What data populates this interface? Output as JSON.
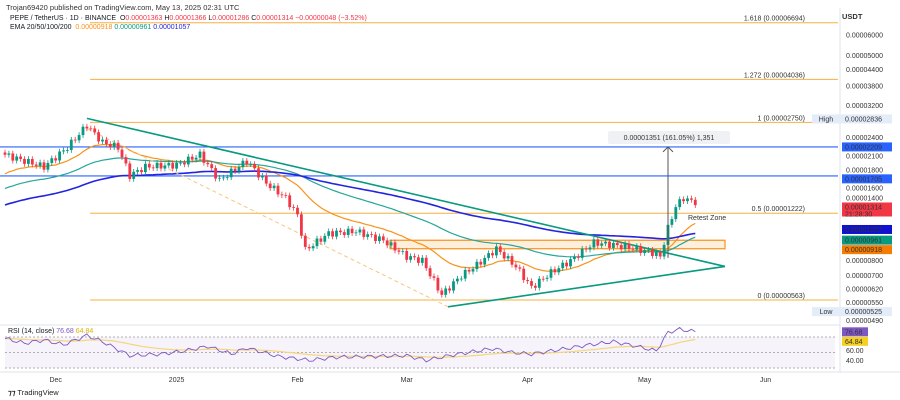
{
  "header": {
    "published": "Trojan69420 published on TradingView.com, May 13, 2025 02:31 UTC",
    "symbol": "PEPE / TetherUS · 1D · BINANCE",
    "o_label": "O",
    "o": "0.00001363",
    "h_label": "H",
    "h": "0.00001366",
    "l_label": "L",
    "l": "0.00001286",
    "c_label": "C",
    "c": "0.00001314",
    "change": "−0.00000048 (−3.52%)",
    "ema_label": "EMA 20/50/100/200",
    "ema20": "0.00000918",
    "ema50": "0.00000961",
    "ema100": "0.00001057"
  },
  "currency": "USDT",
  "colors": {
    "up": "#089981",
    "down": "#f23645",
    "ema20": "#f7931a",
    "ema50": "#26a69a",
    "ema100": "#2323e0",
    "ema200": "#2323e0",
    "fib": "#f5b041",
    "level": "#2962ff",
    "trend": "#089981",
    "rsi": "#7e57c2",
    "rsi_ma": "#f5d67b"
  },
  "chart_data": {
    "type": "candlestick",
    "title": "PEPE / TetherUS · 1D · BINANCE",
    "scale": "log",
    "y_ticks": [
      "0.00006000",
      "0.00005000",
      "0.00004400",
      "0.00003800",
      "0.00003200",
      "0.00002400",
      "0.00002100",
      "0.00001800",
      "0.00001600",
      "0.00001400",
      "0.00000800",
      "0.00000700",
      "0.00000620",
      "0.00000550",
      "0.00000490"
    ],
    "x_ticks": [
      {
        "label": "Dec",
        "day": 13
      },
      {
        "label": "2025",
        "day": 44
      },
      {
        "label": "Feb",
        "day": 75
      },
      {
        "label": "Mar",
        "day": 103
      },
      {
        "label": "Apr",
        "day": 134
      },
      {
        "label": "May",
        "day": 164
      },
      {
        "label": "Jun",
        "day": 195
      }
    ],
    "closes_keypoints": [
      [
        0,
        2.06e-05
      ],
      [
        5,
        1.95e-05
      ],
      [
        10,
        1.85e-05
      ],
      [
        16,
        2.2e-05
      ],
      [
        21,
        2.68e-05
      ],
      [
        25,
        2.3e-05
      ],
      [
        29,
        2.2e-05
      ],
      [
        32,
        1.71e-05
      ],
      [
        36,
        1.85e-05
      ],
      [
        44,
        1.88e-05
      ],
      [
        50,
        2.06e-05
      ],
      [
        55,
        1.64e-05
      ],
      [
        62,
        1.95e-05
      ],
      [
        67,
        1.6e-05
      ],
      [
        72,
        1.4e-05
      ],
      [
        75,
        1.2e-05
      ],
      [
        77,
        8.8e-06
      ],
      [
        83,
        1.02e-05
      ],
      [
        90,
        1.04e-05
      ],
      [
        97,
        9.6e-06
      ],
      [
        103,
        8.3e-06
      ],
      [
        107,
        8e-06
      ],
      [
        112,
        5.9e-06
      ],
      [
        117,
        7e-06
      ],
      [
        121,
        7.7e-06
      ],
      [
        126,
        8.9e-06
      ],
      [
        131,
        7.6e-06
      ],
      [
        135,
        6.3e-06
      ],
      [
        140,
        7.2e-06
      ],
      [
        145,
        8e-06
      ],
      [
        151,
        9.4e-06
      ],
      [
        156,
        9.2e-06
      ],
      [
        160,
        9e-06
      ],
      [
        166,
        8.6e-06
      ],
      [
        168,
        8.3e-06
      ],
      [
        170,
        1.07e-05
      ],
      [
        172,
        1.3e-05
      ],
      [
        174,
        1.4e-05
      ],
      [
        176,
        1.36e-05
      ],
      [
        177,
        1.314e-05
      ]
    ],
    "price_labels": [
      {
        "text": "High",
        "value": "0.00002836",
        "price": 2.836e-05,
        "bg": "#e3ecf9",
        "fg": "#333"
      },
      {
        "text": "",
        "value": "0.00002209",
        "price": 2.209e-05,
        "bg": "#2962ff",
        "fg": "#fff"
      },
      {
        "text": "",
        "value": "0.00001705",
        "price": 1.705e-05,
        "bg": "#2962ff",
        "fg": "#fff"
      },
      {
        "text": "",
        "value": "0.00001314",
        "sub": "21:28:30",
        "price": 1.314e-05,
        "bg": "#f23645",
        "fg": "#fff"
      },
      {
        "text": "",
        "value": "0.00001057",
        "price": 1.057e-05,
        "bg": "#1010d0",
        "fg": "#fff"
      },
      {
        "text": "",
        "value": "0.00000961",
        "price": 9.61e-06,
        "bg": "#089981",
        "fg": "#fff"
      },
      {
        "text": "",
        "value": "0.00000918",
        "price": 9.18e-06,
        "bg": "#f57c00",
        "fg": "#fff"
      },
      {
        "text": "Low",
        "value": "0.00000525",
        "price": 5.25e-06,
        "bg": "#e3ecf9",
        "fg": "#333"
      }
    ],
    "fib_levels": [
      {
        "label": "1.618 (0.00006694)",
        "price": 6.694e-05
      },
      {
        "label": "1.272 (0.00004036)",
        "price": 4.036e-05
      },
      {
        "label": "1 (0.00002750)",
        "price": 2.75e-05
      },
      {
        "label": "0.5 (0.00001222)",
        "price": 1.222e-05
      },
      {
        "label": "0 (0.00000563)",
        "price": 5.63e-06
      }
    ],
    "annotations": {
      "measure": "0.00001351 (161.05%) 1,351",
      "retest": "Retest Zone"
    },
    "rsi": {
      "label": "RSI (14, close)",
      "value": "76.68",
      "ma": "64.84",
      "ticks": [
        "60.00",
        "40.00"
      ],
      "keypoints": [
        [
          0,
          68
        ],
        [
          5,
          62
        ],
        [
          10,
          66
        ],
        [
          15,
          60
        ],
        [
          21,
          72
        ],
        [
          25,
          64
        ],
        [
          32,
          46
        ],
        [
          40,
          48
        ],
        [
          46,
          52
        ],
        [
          52,
          58
        ],
        [
          58,
          48
        ],
        [
          62,
          56
        ],
        [
          70,
          45
        ],
        [
          78,
          40
        ],
        [
          85,
          44
        ],
        [
          95,
          45
        ],
        [
          103,
          46
        ],
        [
          108,
          40
        ],
        [
          115,
          47
        ],
        [
          125,
          55
        ],
        [
          130,
          50
        ],
        [
          135,
          48
        ],
        [
          140,
          52
        ],
        [
          150,
          60
        ],
        [
          156,
          64
        ],
        [
          162,
          58
        ],
        [
          167,
          52
        ],
        [
          170,
          76
        ],
        [
          173,
          80
        ],
        [
          177,
          76.68
        ]
      ]
    }
  },
  "footer": "TradingView"
}
